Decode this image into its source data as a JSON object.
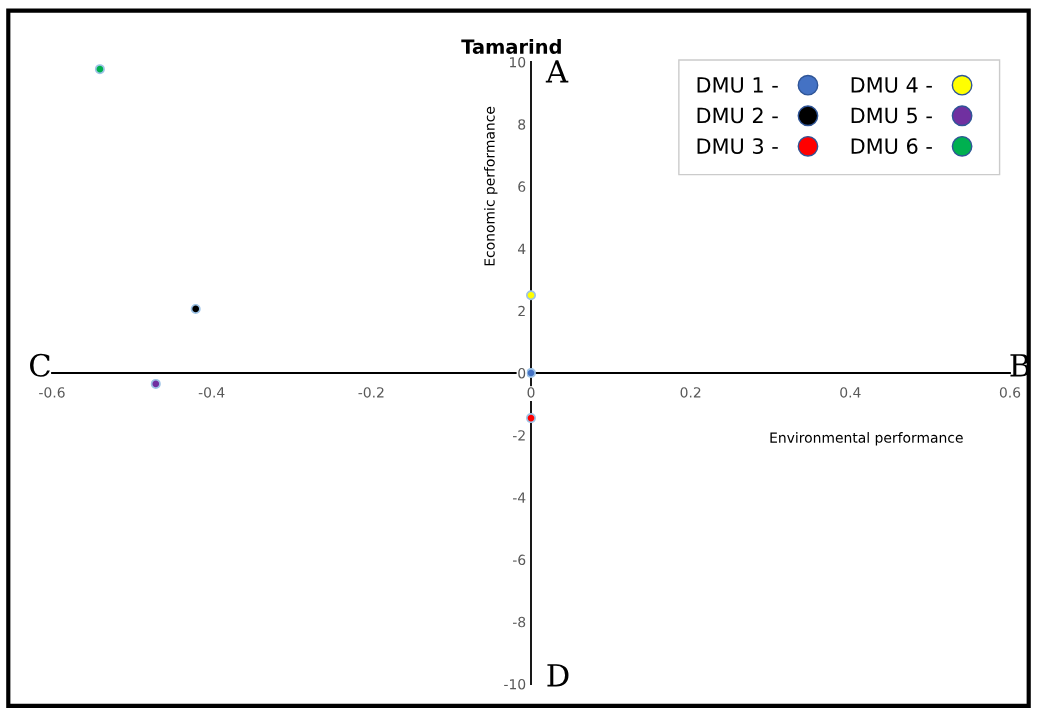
{
  "chart_data": {
    "type": "scatter",
    "title": "Tamarind",
    "xlabel": "Environmental performance",
    "ylabel": "Economic performance",
    "xlim": [
      -0.6,
      0.6
    ],
    "xticks": [
      -0.6,
      -0.4,
      -0.2,
      0,
      0.2,
      0.4,
      0.6
    ],
    "ylim": [
      -10,
      10
    ],
    "yticks": [
      -10,
      -8,
      -6,
      -4,
      -2,
      0,
      2,
      4,
      6,
      8,
      10
    ],
    "grid": false,
    "legend": "top right",
    "marker": "circle",
    "annotations": [
      "A",
      "B",
      "C",
      "D"
    ],
    "series": [
      {
        "name": "DMU 1 -",
        "color": "#4472c4",
        "x": [
          0
        ],
        "values": [
          0
        ]
      },
      {
        "name": "DMU 2 -",
        "color": "#000000",
        "x": [
          -0.42
        ],
        "values": [
          2.06
        ]
      },
      {
        "name": "DMU 3 -",
        "color": "#ff0000",
        "x": [
          0
        ],
        "values": [
          -1.45
        ]
      },
      {
        "name": "DMU 4 -",
        "color": "#ffff00",
        "x": [
          0
        ],
        "values": [
          2.5
        ]
      },
      {
        "name": "DMU 5 -",
        "color": "#7030a0",
        "x": [
          -0.47
        ],
        "values": [
          -0.35
        ]
      },
      {
        "name": "DMU 6 -",
        "color": "#00b050",
        "x": [
          -0.54
        ],
        "values": [
          9.77
        ]
      }
    ]
  }
}
